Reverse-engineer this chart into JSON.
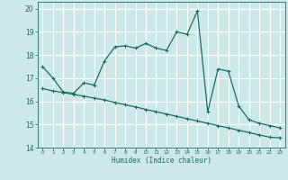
{
  "xlabel": "Humidex (Indice chaleur)",
  "xlim": [
    -0.5,
    23.5
  ],
  "ylim": [
    14.0,
    20.3
  ],
  "yticks": [
    14,
    15,
    16,
    17,
    18,
    19,
    20
  ],
  "xticks": [
    0,
    1,
    2,
    3,
    4,
    5,
    6,
    7,
    8,
    9,
    10,
    11,
    12,
    13,
    14,
    15,
    16,
    17,
    18,
    19,
    20,
    21,
    22,
    23
  ],
  "bg_color": "#cce8e8",
  "grid_color": "#ffffff",
  "line_color": "#1a6e60",
  "line1_x": [
    0,
    1,
    2,
    3,
    4,
    5,
    6,
    7,
    8,
    9,
    10,
    11,
    12,
    13,
    14,
    15,
    16,
    17,
    18,
    19,
    20,
    21,
    22,
    23
  ],
  "line1_y": [
    17.5,
    17.0,
    16.4,
    16.35,
    16.8,
    16.7,
    17.75,
    18.35,
    18.4,
    18.3,
    18.5,
    18.3,
    18.2,
    19.0,
    18.9,
    19.9,
    15.55,
    17.4,
    17.3,
    15.8,
    15.2,
    15.05,
    14.95,
    14.85
  ],
  "line2_x": [
    0,
    1,
    2,
    3,
    4,
    5,
    6,
    7,
    8,
    9,
    10,
    11,
    12,
    13,
    14,
    15,
    16,
    17,
    18,
    19,
    20,
    21,
    22,
    23
  ],
  "line2_y": [
    16.55,
    16.45,
    16.38,
    16.3,
    16.22,
    16.14,
    16.06,
    15.95,
    15.85,
    15.76,
    15.65,
    15.55,
    15.45,
    15.35,
    15.25,
    15.15,
    15.05,
    14.95,
    14.85,
    14.75,
    14.65,
    14.55,
    14.45,
    14.42
  ]
}
